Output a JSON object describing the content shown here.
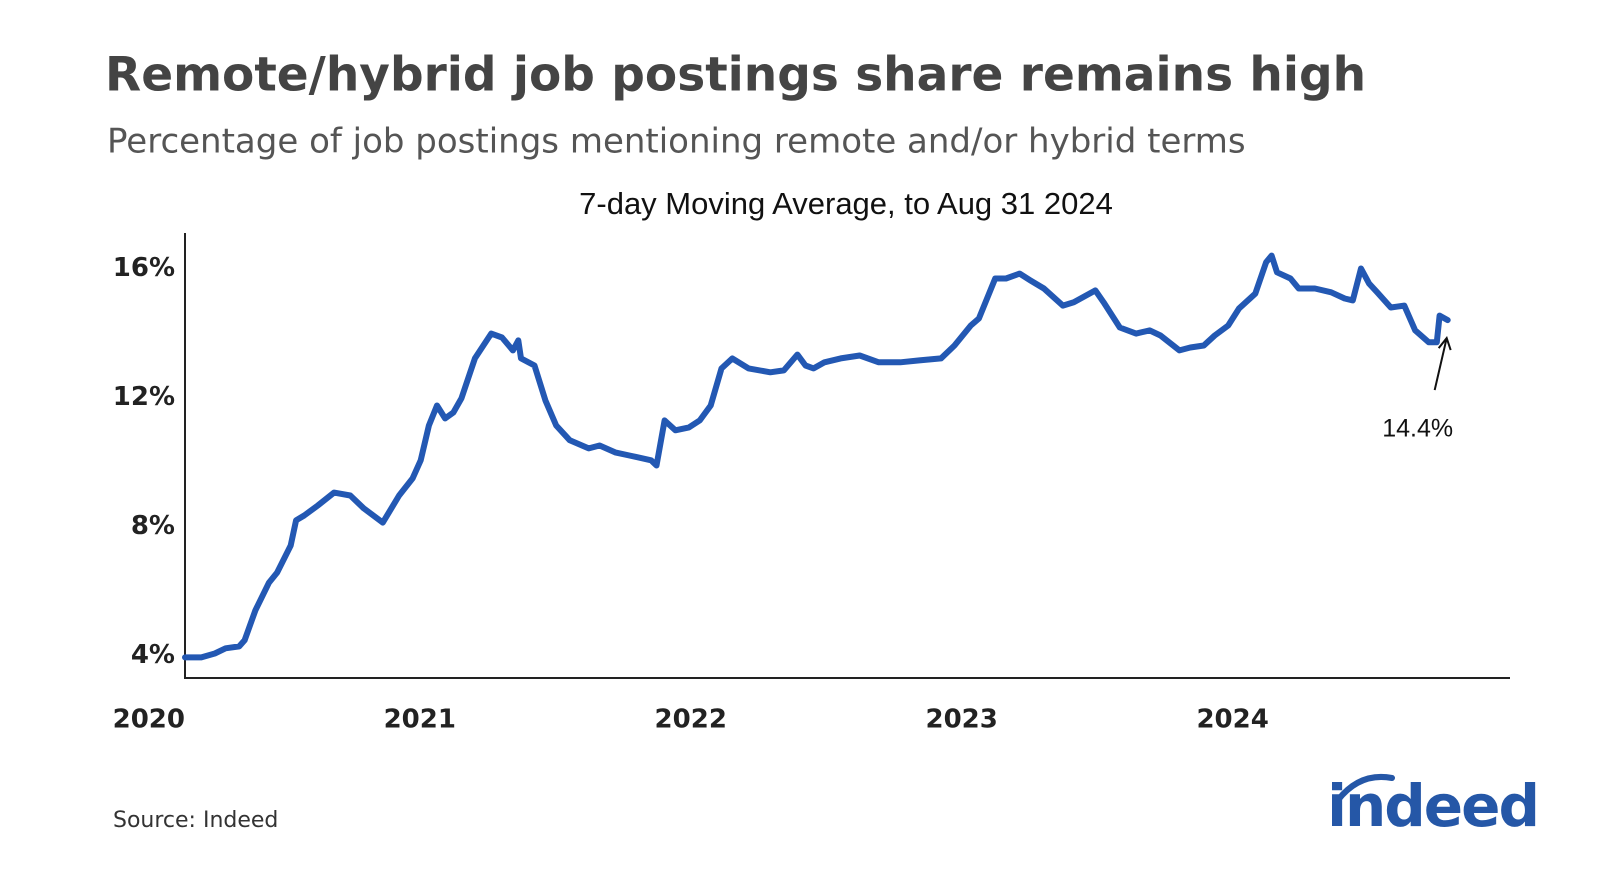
{
  "chart_data": {
    "type": "line",
    "title": "Remote/hybrid job postings share remains high",
    "subtitle": "Percentage of job postings mentioning remote and/or hybrid terms",
    "chart_title": "7-day Moving Average, to Aug 31 2024",
    "source": "Source: Indeed",
    "logo": "indeed",
    "annotation": "14.4%",
    "color": "#2358b3",
    "grid": false,
    "xlim": [
      2020,
      2024.89
    ],
    "xticks": [
      2020,
      2021,
      2022,
      2023,
      2024
    ],
    "ylim": [
      3.3,
      17.1
    ],
    "yticks": [
      {
        "value": 4,
        "label": "4%"
      },
      {
        "value": 8,
        "label": "8%"
      },
      {
        "value": 12,
        "label": "12%"
      },
      {
        "value": 16,
        "label": "16%"
      }
    ],
    "x": [
      2020.0,
      2020.06,
      2020.11,
      2020.15,
      2020.2,
      2020.22,
      2020.26,
      2020.31,
      2020.34,
      2020.39,
      2020.41,
      2020.44,
      2020.49,
      2020.55,
      2020.61,
      2020.66,
      2020.73,
      2020.79,
      2020.84,
      2020.87,
      2020.9,
      2020.93,
      2020.96,
      2020.99,
      2021.02,
      2021.07,
      2021.13,
      2021.17,
      2021.21,
      2021.23,
      2021.24,
      2021.29,
      2021.33,
      2021.37,
      2021.42,
      2021.49,
      2021.53,
      2021.59,
      2021.64,
      2021.72,
      2021.74,
      2021.77,
      2021.81,
      2021.86,
      2021.9,
      2021.94,
      2021.98,
      2022.02,
      2022.08,
      2022.16,
      2022.21,
      2022.26,
      2022.29,
      2022.32,
      2022.36,
      2022.42,
      2022.49,
      2022.56,
      2022.64,
      2022.71,
      2022.79,
      2022.84,
      2022.9,
      2022.93,
      2022.99,
      2023.03,
      2023.08,
      2023.12,
      2023.17,
      2023.24,
      2023.28,
      2023.36,
      2023.39,
      2023.45,
      2023.51,
      2023.56,
      2023.6,
      2023.67,
      2023.71,
      2023.76,
      2023.8,
      2023.85,
      2023.89,
      2023.95,
      2023.99,
      2024.01,
      2024.03,
      2024.08,
      2024.11,
      2024.17,
      2024.23,
      2024.28,
      2024.31,
      2024.34,
      2024.37,
      2024.4,
      2024.45,
      2024.5,
      2024.54,
      2024.59,
      2024.62,
      2024.63,
      2024.66
    ],
    "values": [
      3.94,
      3.94,
      4.06,
      4.22,
      4.28,
      4.47,
      5.4,
      6.26,
      6.57,
      7.41,
      8.19,
      8.34,
      8.65,
      9.05,
      8.96,
      8.56,
      8.12,
      8.96,
      9.49,
      10.05,
      11.13,
      11.75,
      11.35,
      11.53,
      11.97,
      13.21,
      13.98,
      13.86,
      13.46,
      13.77,
      13.21,
      12.99,
      11.91,
      11.13,
      10.67,
      10.42,
      10.51,
      10.29,
      10.2,
      10.05,
      9.89,
      11.29,
      10.98,
      11.07,
      11.29,
      11.75,
      12.9,
      13.21,
      12.9,
      12.78,
      12.84,
      13.33,
      12.99,
      12.9,
      13.09,
      13.21,
      13.3,
      13.09,
      13.09,
      13.15,
      13.21,
      13.61,
      14.23,
      14.45,
      15.69,
      15.69,
      15.84,
      15.63,
      15.38,
      14.85,
      14.95,
      15.32,
      14.95,
      14.17,
      13.98,
      14.08,
      13.92,
      13.46,
      13.55,
      13.61,
      13.92,
      14.23,
      14.76,
      15.22,
      16.19,
      16.4,
      15.88,
      15.69,
      15.38,
      15.38,
      15.26,
      15.07,
      15.01,
      16.0,
      15.53,
      15.26,
      14.79,
      14.85,
      14.08,
      13.71,
      13.71,
      14.54,
      14.4
    ]
  }
}
